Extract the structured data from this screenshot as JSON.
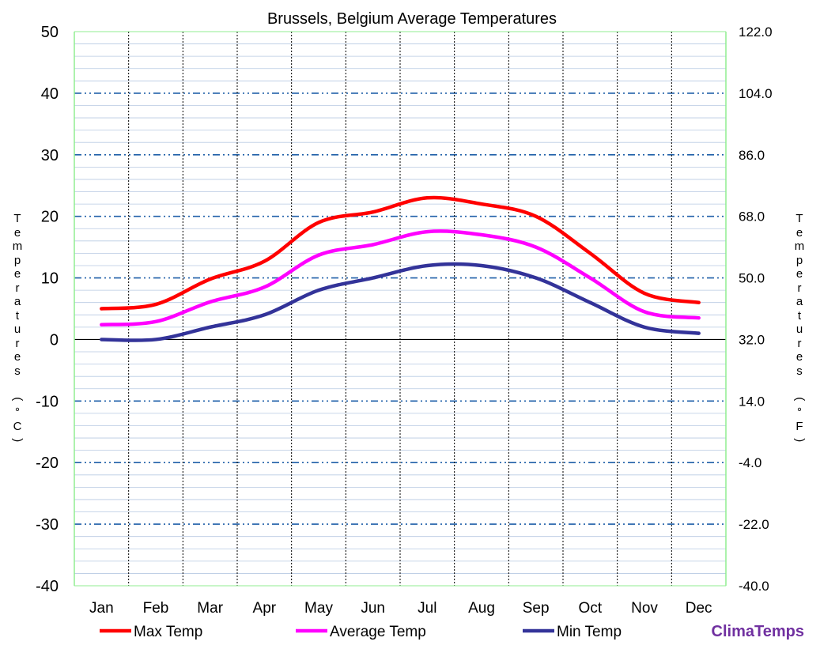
{
  "chart_data": {
    "type": "line",
    "title": "Brussels, Belgium Average Temperatures",
    "categories": [
      "Jan",
      "Feb",
      "Mar",
      "Apr",
      "May",
      "Jun",
      "Jul",
      "Aug",
      "Sep",
      "Oct",
      "Nov",
      "Dec"
    ],
    "series": [
      {
        "name": "Max Temp",
        "color": "#ff0000",
        "values": [
          5.0,
          5.7,
          9.8,
          12.7,
          19.0,
          20.7,
          23.0,
          22.0,
          20.0,
          14.0,
          7.5,
          6.0
        ]
      },
      {
        "name": "Average Temp",
        "color": "#ff00ff",
        "values": [
          2.4,
          2.9,
          6.1,
          8.5,
          13.7,
          15.4,
          17.5,
          17.0,
          15.0,
          10.0,
          4.5,
          3.5
        ]
      },
      {
        "name": "Min Temp",
        "color": "#333399",
        "values": [
          0.0,
          0.0,
          2.0,
          4.0,
          8.0,
          10.0,
          12.0,
          12.0,
          10.0,
          6.0,
          2.0,
          1.0
        ]
      }
    ],
    "ylabel": "Temperatures (°C)",
    "y2label": "Temperatures (°F)",
    "ylim": [
      -40,
      50
    ],
    "y_ticks": [
      "50",
      "40",
      "30",
      "20",
      "10",
      "0",
      "-10",
      "-20",
      "-30",
      "-40"
    ],
    "y2_ticks": [
      "122.0",
      "104.0",
      "86.0",
      "68.0",
      "50.0",
      "32.0",
      "14.0",
      "-4.0",
      "-22.0",
      "-40.0"
    ],
    "grid": true,
    "legend_position": "bottom"
  },
  "branding": {
    "logo_text": "ClimaTemps",
    "logo_color": "#7030a0"
  }
}
